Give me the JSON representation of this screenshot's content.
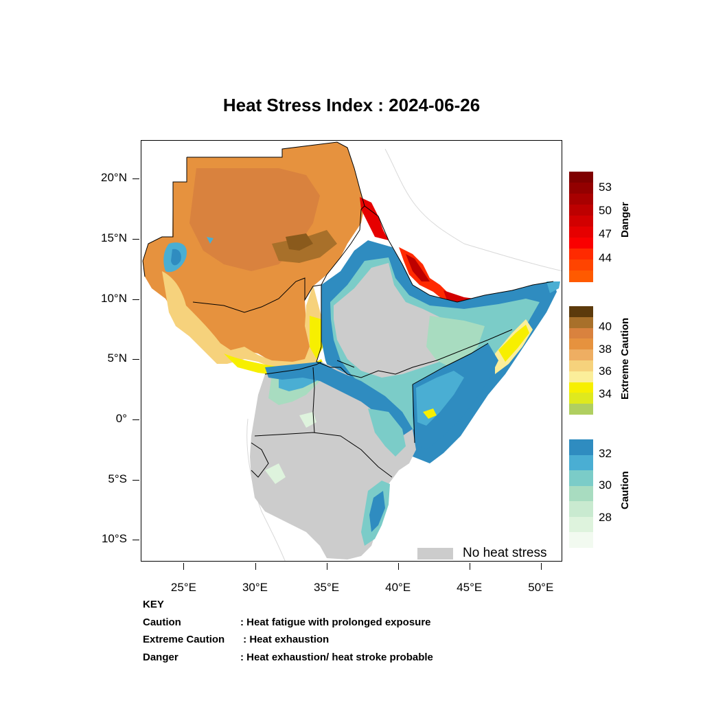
{
  "title": "Heat Stress Index : 2024-06-26",
  "map": {
    "lon_range": [
      22,
      51.5
    ],
    "lat_range": [
      -11.8,
      23.2
    ],
    "y_ticks": [
      {
        "value": 20,
        "label": "20°N"
      },
      {
        "value": 15,
        "label": "15°N"
      },
      {
        "value": 10,
        "label": "10°N"
      },
      {
        "value": 5,
        "label": "5°N"
      },
      {
        "value": 0,
        "label": "0°"
      },
      {
        "value": -5,
        "label": "5°S"
      },
      {
        "value": -10,
        "label": "10°S"
      }
    ],
    "x_ticks": [
      {
        "value": 25,
        "label": "25°E"
      },
      {
        "value": 30,
        "label": "30°E"
      },
      {
        "value": 35,
        "label": "35°E"
      },
      {
        "value": 40,
        "label": "40°E"
      },
      {
        "value": 45,
        "label": "45°E"
      },
      {
        "value": 50,
        "label": "50°E"
      }
    ],
    "no_heat_stress_color": "#cccccc"
  },
  "legend": {
    "no_heat_stress": "No heat stress",
    "danger": {
      "title": "Danger",
      "labels": [
        "53",
        "50",
        "47",
        "44"
      ],
      "colors": [
        "#7f0000",
        "#930000",
        "#a80000",
        "#bd0000",
        "#d20000",
        "#e60000",
        "#fa0000",
        "#ff2a00",
        "#ff4400",
        "#ff5a00"
      ]
    },
    "extreme_caution": {
      "title": "Extreme Caution",
      "labels": [
        "40",
        "38",
        "36",
        "34"
      ],
      "colors": [
        "#5c3a0c",
        "#a8702a",
        "#d9823e",
        "#e6923e",
        "#eeae62",
        "#f6d27c",
        "#fbee9a",
        "#f7ef00",
        "#dfe91e",
        "#b0cf60"
      ]
    },
    "caution": {
      "title": "Caution",
      "labels": [
        "32",
        "30",
        "28"
      ],
      "colors": [
        "#2f8cc0",
        "#4aaed3",
        "#7bccc8",
        "#a8dcc0",
        "#c9ead0",
        "#def3dd",
        "#f2faf0"
      ]
    }
  },
  "key": {
    "heading": "KEY",
    "rows": [
      {
        "term": "Caution",
        "desc": ": Heat fatigue with prolonged exposure"
      },
      {
        "term": "Extreme Caution",
        "desc": " : Heat exhaustion"
      },
      {
        "term": "Danger",
        "desc": ": Heat exhaustion/ heat stroke probable"
      }
    ]
  }
}
